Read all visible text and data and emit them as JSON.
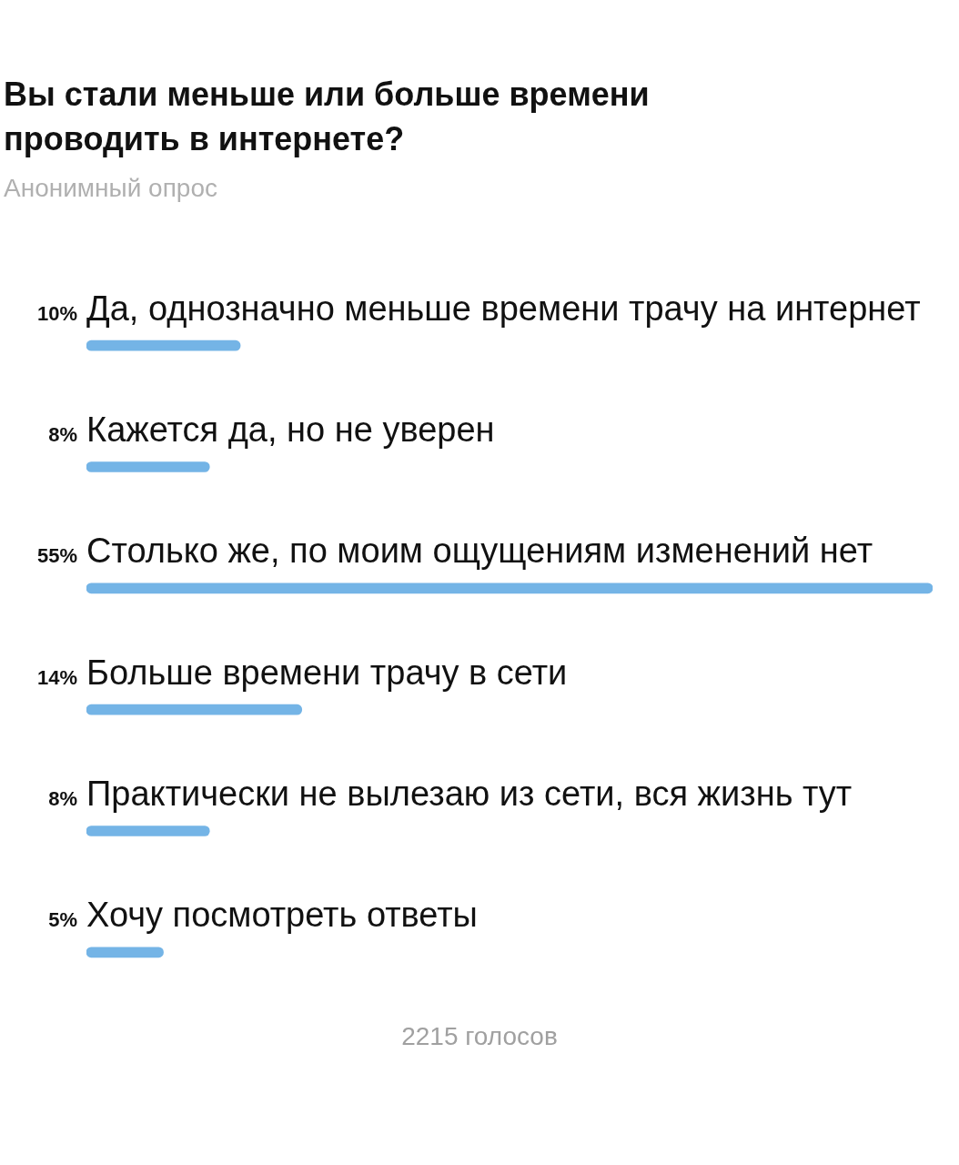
{
  "chart_data": {
    "type": "bar",
    "orientation": "horizontal",
    "title": "Вы стали меньше или больше  времени проводить в интернете?",
    "subtitle": "Анонимный опрос",
    "categories": [
      "Да, однозначно меньше времени трачу на интернет",
      "Кажется да, но не уверен",
      "Столько же, по моим ощущениям изменений нет",
      "Больше времени трачу в сети",
      "Практически не вылезаю из сети, вся жизнь тут",
      "Хочу посмотреть ответы"
    ],
    "values": [
      10,
      8,
      55,
      14,
      8,
      5
    ],
    "value_labels": [
      "10%",
      "8%",
      "55%",
      "14%",
      "8%",
      "5%"
    ],
    "color": "#74b4e6",
    "annotations": [
      "2215 голосов"
    ]
  }
}
